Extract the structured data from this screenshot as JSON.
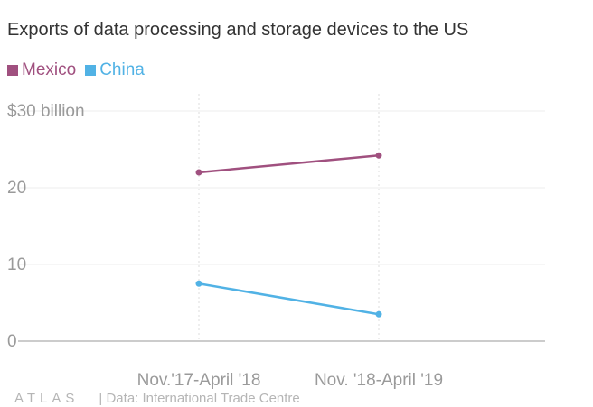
{
  "title": "Exports of data processing and storage devices to the US",
  "footer": {
    "brand": "ATLAS",
    "source": "| Data: International Trade Centre"
  },
  "chart_data": {
    "type": "line",
    "title": "Exports of data processing and storage devices to the US",
    "categories": [
      "Nov.'17-April '18",
      "Nov. '18-April '19"
    ],
    "series": [
      {
        "name": "Mexico",
        "values": [
          22.0,
          24.2
        ],
        "color": "#a0507f"
      },
      {
        "name": "China",
        "values": [
          7.5,
          3.5
        ],
        "color": "#51b2e5"
      }
    ],
    "y_ticks": [
      0,
      10,
      20,
      30
    ],
    "y_tick_labels": [
      "0",
      "10",
      "20",
      "$30 billion"
    ],
    "ylim": [
      0,
      30
    ],
    "xlabel": "",
    "ylabel": "",
    "grid": true,
    "legend_position": "top-left"
  }
}
